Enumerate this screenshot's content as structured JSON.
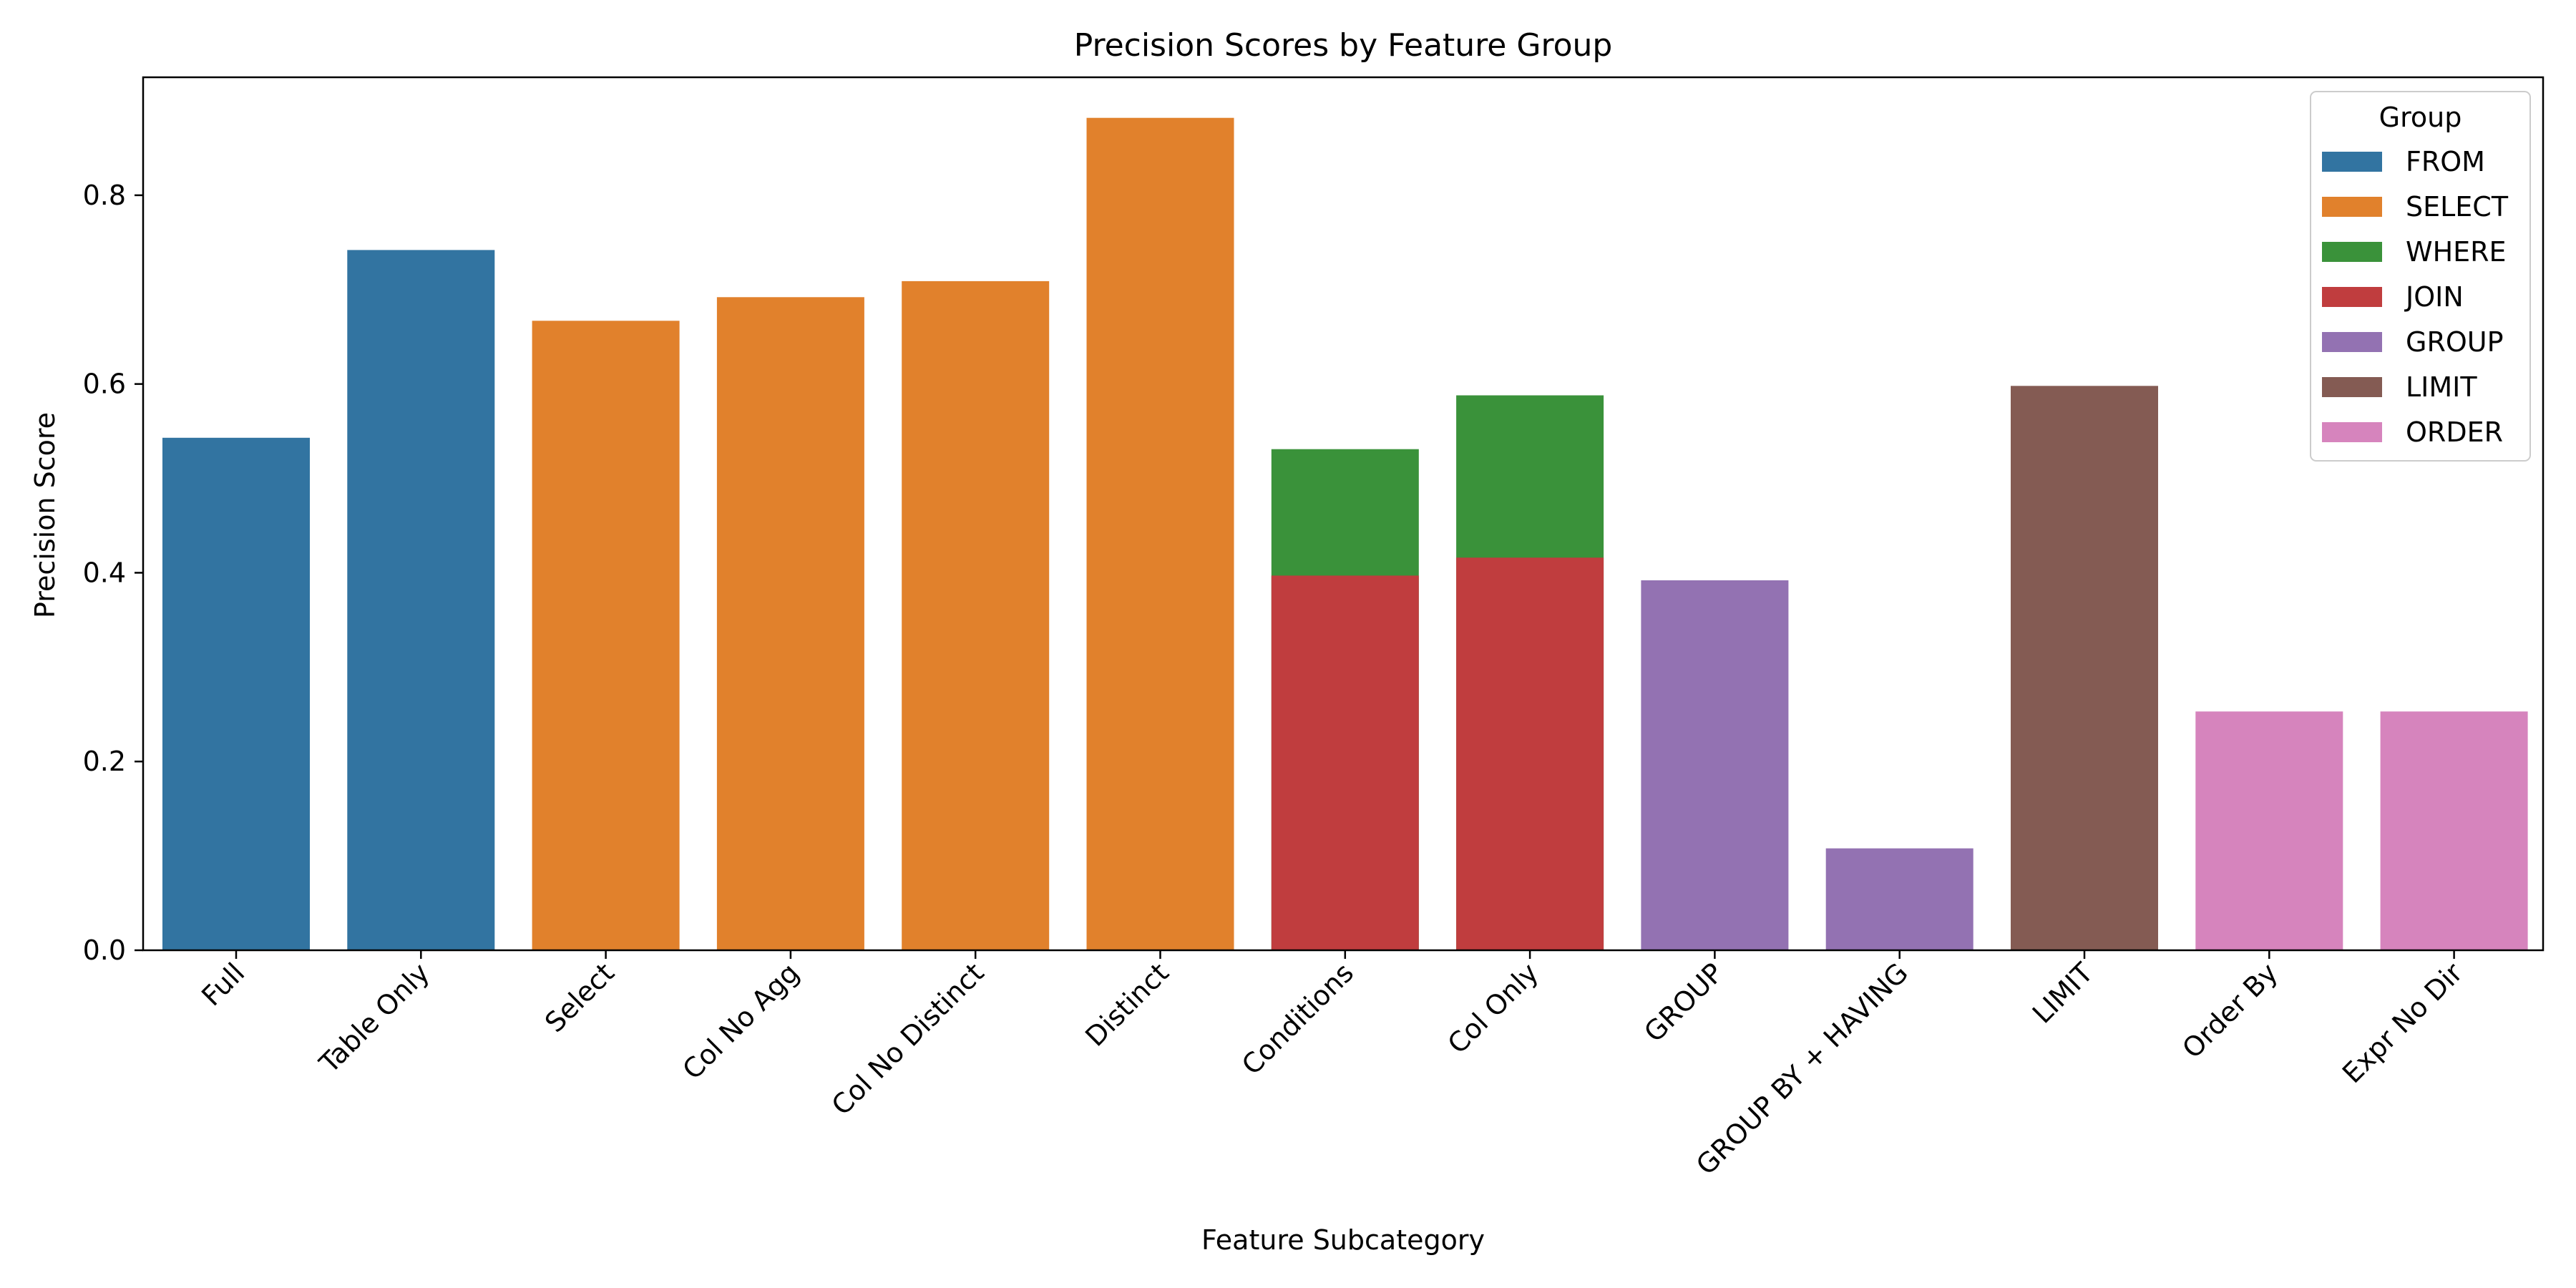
{
  "chart_data": {
    "type": "bar",
    "title": "Precision Scores by Feature Group",
    "xlabel": "Feature Subcategory",
    "ylabel": "Precision Score",
    "ylim": [
      0,
      0.925
    ],
    "yticks": [
      "0.0",
      "0.2",
      "0.4",
      "0.6",
      "0.8"
    ],
    "ytick_values": [
      0,
      0.2,
      0.4,
      0.6,
      0.8
    ],
    "categories": [
      "Full",
      "Table Only",
      "Select",
      "Col No Agg",
      "Col No Distinct",
      "Distinct",
      "Conditions",
      "Col Only",
      "GROUP",
      "GROUP BY + HAVING",
      "LIMIT",
      "Order By",
      "Expr No Dir"
    ],
    "bars": [
      {
        "category_index": 0,
        "group": "FROM",
        "value": 0.543
      },
      {
        "category_index": 1,
        "group": "FROM",
        "value": 0.742
      },
      {
        "category_index": 2,
        "group": "SELECT",
        "value": 0.667
      },
      {
        "category_index": 3,
        "group": "SELECT",
        "value": 0.692
      },
      {
        "category_index": 4,
        "group": "SELECT",
        "value": 0.709
      },
      {
        "category_index": 5,
        "group": "SELECT",
        "value": 0.882
      },
      {
        "category_index": 6,
        "group": "WHERE",
        "value": 0.531
      },
      {
        "category_index": 6,
        "group": "JOIN",
        "value": 0.397
      },
      {
        "category_index": 7,
        "group": "WHERE",
        "value": 0.588
      },
      {
        "category_index": 7,
        "group": "JOIN",
        "value": 0.416
      },
      {
        "category_index": 8,
        "group": "GROUP",
        "value": 0.392
      },
      {
        "category_index": 9,
        "group": "GROUP",
        "value": 0.108
      },
      {
        "category_index": 10,
        "group": "LIMIT",
        "value": 0.598
      },
      {
        "category_index": 11,
        "group": "ORDER",
        "value": 0.253
      },
      {
        "category_index": 12,
        "group": "ORDER",
        "value": 0.253
      }
    ],
    "legend": {
      "title": "Group",
      "placement": "top-right",
      "entries": [
        {
          "name": "FROM",
          "color": "#3274a1"
        },
        {
          "name": "SELECT",
          "color": "#e1812c"
        },
        {
          "name": "WHERE",
          "color": "#3a923a"
        },
        {
          "name": "JOIN",
          "color": "#c03d3e"
        },
        {
          "name": "GROUP",
          "color": "#9372b2"
        },
        {
          "name": "LIMIT",
          "color": "#845b53"
        },
        {
          "name": "ORDER",
          "color": "#d684bd"
        }
      ]
    },
    "grid": false
  }
}
